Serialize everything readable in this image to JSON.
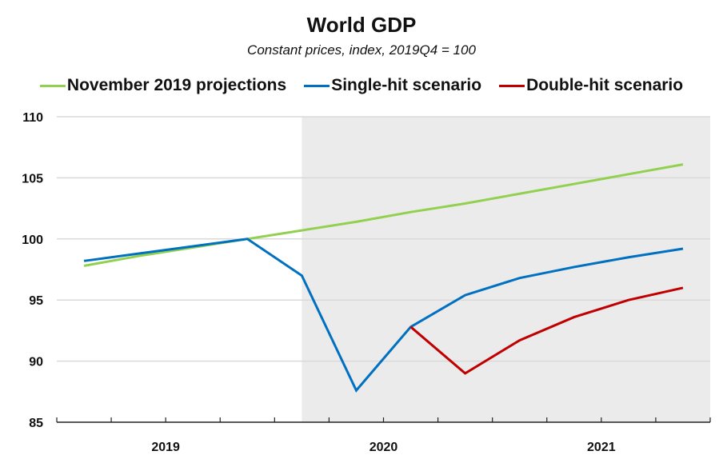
{
  "chart_data": {
    "type": "line",
    "title": "World GDP",
    "subtitle": "Constant prices, index, 2019Q4 = 100",
    "xlabel": "",
    "ylabel": "",
    "ylim": [
      85,
      110
    ],
    "yticks": [
      85,
      90,
      95,
      100,
      105,
      110
    ],
    "grid": true,
    "legend_position": "top",
    "quarters": [
      "2019Q1",
      "2019Q2",
      "2019Q3",
      "2019Q4",
      "2020Q1",
      "2020Q2",
      "2020Q3",
      "2020Q4",
      "2021Q1",
      "2021Q2",
      "2021Q3",
      "2021Q4"
    ],
    "year_labels": [
      {
        "label": "2019",
        "center_quarter": 2
      },
      {
        "label": "2020",
        "center_quarter": 6
      },
      {
        "label": "2021",
        "center_quarter": 10
      }
    ],
    "shaded_region": {
      "from_quarter": 5.5,
      "to_quarter": 12,
      "color": "#ebebeb",
      "meaning": "projection period"
    },
    "series": [
      {
        "name": "November 2019 projections",
        "color": "#92d050",
        "x": [
          "2019Q1",
          "2019Q2",
          "2019Q3",
          "2019Q4",
          "2020Q1",
          "2020Q2",
          "2020Q3",
          "2020Q4",
          "2021Q1",
          "2021Q2",
          "2021Q3",
          "2021Q4"
        ],
        "values": [
          97.8,
          98.6,
          99.3,
          100.0,
          100.7,
          101.4,
          102.2,
          102.9,
          103.7,
          104.5,
          105.3,
          106.1
        ]
      },
      {
        "name": "Single-hit scenario",
        "color": "#0070c0",
        "x": [
          "2019Q1",
          "2019Q2",
          "2019Q3",
          "2019Q4",
          "2020Q1",
          "2020Q2",
          "2020Q3",
          "2020Q4",
          "2021Q1",
          "2021Q2",
          "2021Q3",
          "2021Q4"
        ],
        "values": [
          98.2,
          98.8,
          99.4,
          100.0,
          97.0,
          87.6,
          92.8,
          95.4,
          96.8,
          97.7,
          98.5,
          99.2
        ]
      },
      {
        "name": "Double-hit scenario",
        "color": "#c00000",
        "x": [
          "2020Q3",
          "2020Q4",
          "2021Q1",
          "2021Q2",
          "2021Q3",
          "2021Q4"
        ],
        "values": [
          92.8,
          89.0,
          91.7,
          93.6,
          95.0,
          96.0
        ]
      }
    ]
  }
}
